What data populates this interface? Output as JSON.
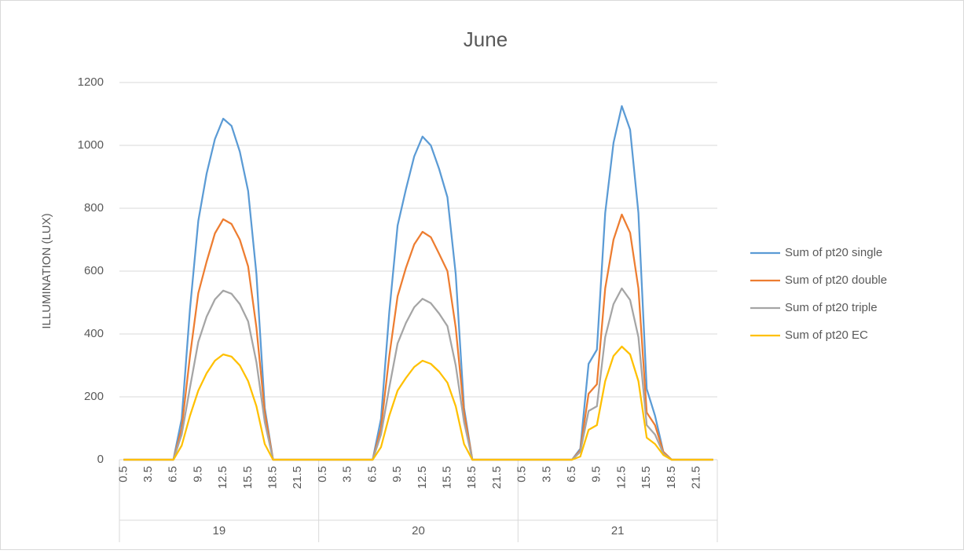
{
  "chart_data": {
    "type": "line",
    "title": "June",
    "y_label": "ILLUMINATION (LUX)",
    "categories": [
      "0.5",
      null,
      null,
      "3.5",
      null,
      null,
      "6.5",
      null,
      null,
      "9.5",
      null,
      null,
      "12.5",
      null,
      null,
      "15.5",
      null,
      null,
      "18.5",
      null,
      null,
      "21.5",
      null,
      null,
      "0.5",
      null,
      null,
      "3.5",
      null,
      null,
      "6.5",
      null,
      null,
      "9.5",
      null,
      null,
      "12.5",
      null,
      null,
      "15.5",
      null,
      null,
      "18.5",
      null,
      null,
      "21.5",
      null,
      null,
      "0.5",
      null,
      null,
      "3.5",
      null,
      null,
      "6.5",
      null,
      null,
      "9.5",
      null,
      null,
      "12.5",
      null,
      null,
      "15.5",
      null,
      null,
      "18.5",
      null,
      null,
      "21.5",
      null,
      null
    ],
    "group_labels": [
      "19",
      "20",
      "21"
    ],
    "series": [
      {
        "name": "Sum of pt20 single",
        "color": "#5b9bd5",
        "values": [
          0,
          0,
          0,
          0,
          0,
          0,
          0,
          130,
          480,
          760,
          910,
          1020,
          1085,
          1062,
          980,
          855,
          590,
          165,
          0,
          0,
          0,
          0,
          0,
          0,
          0,
          0,
          0,
          0,
          0,
          0,
          0,
          130,
          470,
          745,
          860,
          965,
          1028,
          1000,
          925,
          835,
          590,
          165,
          0,
          0,
          0,
          0,
          0,
          0,
          0,
          0,
          0,
          0,
          0,
          0,
          0,
          35,
          305,
          350,
          785,
          1008,
          1125,
          1050,
          785,
          225,
          140,
          25,
          0,
          0,
          0,
          0,
          0,
          0
        ]
      },
      {
        "name": "Sum of pt20 double",
        "color": "#ed7d31",
        "values": [
          0,
          0,
          0,
          0,
          0,
          0,
          0,
          100,
          330,
          530,
          630,
          720,
          765,
          750,
          700,
          615,
          420,
          150,
          0,
          0,
          0,
          0,
          0,
          0,
          0,
          0,
          0,
          0,
          0,
          0,
          0,
          100,
          330,
          520,
          610,
          685,
          725,
          708,
          655,
          600,
          420,
          150,
          0,
          0,
          0,
          0,
          0,
          0,
          0,
          0,
          0,
          0,
          0,
          0,
          0,
          30,
          210,
          240,
          545,
          700,
          780,
          722,
          545,
          150,
          110,
          25,
          0,
          0,
          0,
          0,
          0,
          0
        ]
      },
      {
        "name": "Sum of pt20 triple",
        "color": "#a5a5a5",
        "values": [
          0,
          0,
          0,
          0,
          0,
          0,
          0,
          80,
          230,
          375,
          455,
          510,
          538,
          528,
          495,
          440,
          310,
          120,
          0,
          0,
          0,
          0,
          0,
          0,
          0,
          0,
          0,
          0,
          0,
          0,
          0,
          80,
          230,
          370,
          435,
          485,
          512,
          498,
          465,
          425,
          300,
          120,
          0,
          0,
          0,
          0,
          0,
          0,
          0,
          0,
          0,
          0,
          0,
          0,
          0,
          25,
          155,
          170,
          390,
          495,
          545,
          508,
          390,
          110,
          80,
          20,
          0,
          0,
          0,
          0,
          0,
          0
        ]
      },
      {
        "name": "Sum of pt20 EC",
        "color": "#ffc000",
        "values": [
          0,
          0,
          0,
          0,
          0,
          0,
          0,
          45,
          140,
          220,
          275,
          315,
          335,
          328,
          300,
          250,
          170,
          50,
          0,
          0,
          0,
          0,
          0,
          0,
          0,
          0,
          0,
          0,
          0,
          0,
          0,
          40,
          140,
          220,
          260,
          295,
          315,
          305,
          280,
          245,
          170,
          50,
          0,
          0,
          0,
          0,
          0,
          0,
          0,
          0,
          0,
          0,
          0,
          0,
          0,
          10,
          95,
          110,
          250,
          330,
          360,
          335,
          250,
          70,
          50,
          15,
          0,
          0,
          0,
          0,
          0,
          0
        ]
      }
    ],
    "ylim": [
      0,
      1200
    ],
    "yticks": [
      0,
      200,
      400,
      600,
      800,
      1000,
      1200
    ],
    "grid": true,
    "legend": "right"
  }
}
